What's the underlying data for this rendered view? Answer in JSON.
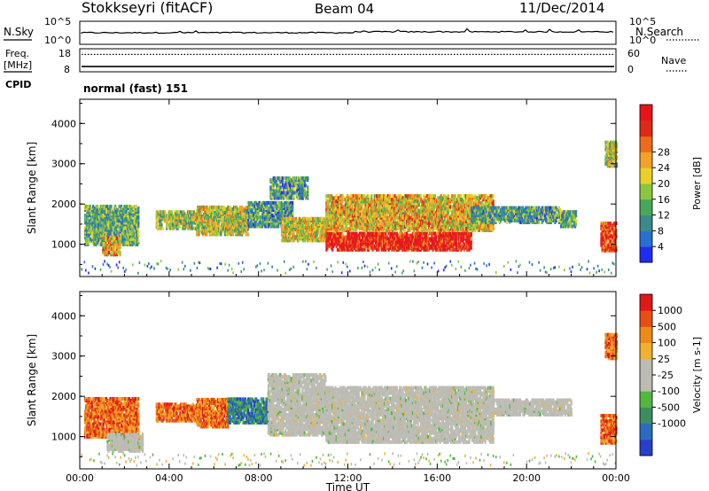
{
  "header": {
    "station": "Stokkseyri (fitACF)",
    "beam": "Beam 04",
    "date": "11/Dec/2014"
  },
  "noise_panel": {
    "left_label": "N.Sky",
    "right_label": "N.Search",
    "tick_top": "10^5",
    "tick_bottom": "10^0"
  },
  "freq_panel": {
    "left_label_1": "Freq.",
    "left_label_2": "[MHz]",
    "cpid_label": "CPID",
    "right_label": "Nave",
    "left_ticks": [
      "18",
      "8"
    ],
    "right_ticks": [
      "60",
      "0"
    ],
    "freq_mhz": 9.8,
    "nave": 48
  },
  "cpid_text": "normal (fast) 151",
  "chart_data": [
    {
      "type": "heatmap",
      "name": "power",
      "ylabel": "Slant Range [km]",
      "ylim": [
        200,
        4600
      ],
      "xlim_hours": [
        0,
        24
      ],
      "x_ticks": [
        "00:00",
        "04:00",
        "08:00",
        "12:00",
        "16:00",
        "20:00",
        "00:00"
      ],
      "y_ticks": [
        "1000",
        "2000",
        "3000",
        "4000"
      ],
      "colorbar": {
        "label": "Power [dB]",
        "ticks": [
          "4",
          "8",
          "12",
          "16",
          "20",
          "24",
          "28"
        ],
        "colors": [
          "#1f2df0",
          "#2a6fd0",
          "#3a8a8a",
          "#47a858",
          "#8cc640",
          "#e8d12a",
          "#f2a22a",
          "#ee6b1c",
          "#e02818",
          "#e8141c"
        ]
      },
      "echo_regions": [
        {
          "t0": 0.2,
          "t1": 2.6,
          "r0": 950,
          "r1": 1900,
          "level": 0.35
        },
        {
          "t0": 1.0,
          "t1": 1.8,
          "r0": 700,
          "r1": 1150,
          "level": 0.6
        },
        {
          "t0": 3.4,
          "t1": 5.2,
          "r0": 1350,
          "r1": 1800,
          "level": 0.45
        },
        {
          "t0": 5.2,
          "t1": 7.5,
          "r0": 1200,
          "r1": 1900,
          "level": 0.5
        },
        {
          "t0": 7.5,
          "t1": 9.5,
          "r0": 1400,
          "r1": 2000,
          "level": 0.3
        },
        {
          "t0": 8.5,
          "t1": 10.2,
          "r0": 2100,
          "r1": 2600,
          "level": 0.3
        },
        {
          "t0": 9.0,
          "t1": 11.5,
          "r0": 1050,
          "r1": 1600,
          "level": 0.55
        },
        {
          "t0": 11.0,
          "t1": 17.5,
          "r0": 820,
          "r1": 1250,
          "level": 0.92
        },
        {
          "t0": 11.0,
          "t1": 18.5,
          "r0": 1300,
          "r1": 2200,
          "level": 0.6
        },
        {
          "t0": 17.5,
          "t1": 21.5,
          "r0": 1500,
          "r1": 1900,
          "level": 0.3
        },
        {
          "t0": 21.5,
          "t1": 22.2,
          "r0": 1400,
          "r1": 1800,
          "level": 0.35
        },
        {
          "t0": 23.3,
          "t1": 24.0,
          "r0": 800,
          "r1": 1500,
          "level": 0.85
        },
        {
          "t0": 23.5,
          "t1": 24.0,
          "r0": 2900,
          "r1": 3500,
          "level": 0.5
        }
      ]
    },
    {
      "type": "heatmap",
      "name": "velocity",
      "ylabel": "Slant Range [km]",
      "xlabel": "Time UT",
      "ylim": [
        200,
        4600
      ],
      "xlim_hours": [
        0,
        24
      ],
      "x_ticks": [
        "00:00",
        "04:00",
        "08:00",
        "12:00",
        "16:00",
        "20:00",
        "00:00"
      ],
      "y_ticks": [
        "1000",
        "2000",
        "3000",
        "4000"
      ],
      "colorbar": {
        "label": "Velocity [m s-1]",
        "ticks": [
          "1000",
          "500",
          "100",
          "25",
          "-25",
          "-100",
          "-500",
          "-1000"
        ],
        "colors": [
          "#2640c8",
          "#2a6cc0",
          "#3c8e60",
          "#50b840",
          "#bcbcb4",
          "#bcbcb4",
          "#f2b030",
          "#ee8a1a",
          "#e84e14",
          "#e01818"
        ]
      },
      "echo_regions": [
        {
          "t0": 0.2,
          "t1": 2.6,
          "r0": 950,
          "r1": 1900,
          "kind": "away"
        },
        {
          "t0": 1.2,
          "t1": 2.8,
          "r0": 600,
          "r1": 1050,
          "kind": "ground"
        },
        {
          "t0": 3.4,
          "t1": 5.2,
          "r0": 1350,
          "r1": 1800,
          "kind": "away"
        },
        {
          "t0": 5.2,
          "t1": 6.6,
          "r0": 1200,
          "r1": 1900,
          "kind": "away"
        },
        {
          "t0": 6.6,
          "t1": 8.4,
          "r0": 1300,
          "r1": 1900,
          "kind": "toward"
        },
        {
          "t0": 8.4,
          "t1": 11.0,
          "r0": 1000,
          "r1": 2500,
          "kind": "ground"
        },
        {
          "t0": 11.0,
          "t1": 18.5,
          "r0": 820,
          "r1": 2200,
          "kind": "ground"
        },
        {
          "t0": 18.5,
          "t1": 22.0,
          "r0": 1500,
          "r1": 1900,
          "kind": "ground"
        },
        {
          "t0": 23.3,
          "t1": 24.0,
          "r0": 800,
          "r1": 1500,
          "kind": "away"
        },
        {
          "t0": 23.5,
          "t1": 24.0,
          "r0": 2900,
          "r1": 3500,
          "kind": "away"
        }
      ]
    }
  ]
}
